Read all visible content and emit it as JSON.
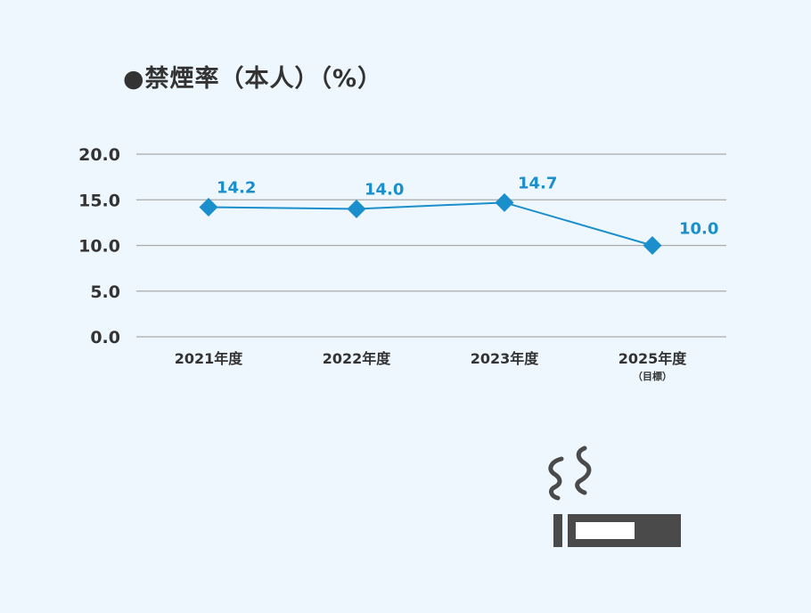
{
  "title": "●禁煙率（本人）（%）",
  "colors": {
    "series": "#1a8fcb",
    "axis_text": "#333333",
    "grid": "#aaaaaa",
    "icon": "#4a4a4a"
  },
  "icon": "cigarette-smoke-icon",
  "chart_data": {
    "type": "line",
    "title": "●禁煙率（本人）（%）",
    "categories": [
      "2021年度",
      "2022年度",
      "2023年度",
      "2025年度"
    ],
    "category_sublabels": [
      "",
      "",
      "",
      "（目標）"
    ],
    "yticks": [
      "0.0",
      "5.0",
      "10.0",
      "15.0",
      "20.0"
    ],
    "ylim": [
      0,
      20
    ],
    "grid": true,
    "series": [
      {
        "values": [
          14.2,
          14.0,
          14.7,
          10.0
        ],
        "labels": [
          "14.2",
          "14.0",
          "14.7",
          "10.0"
        ]
      }
    ]
  }
}
